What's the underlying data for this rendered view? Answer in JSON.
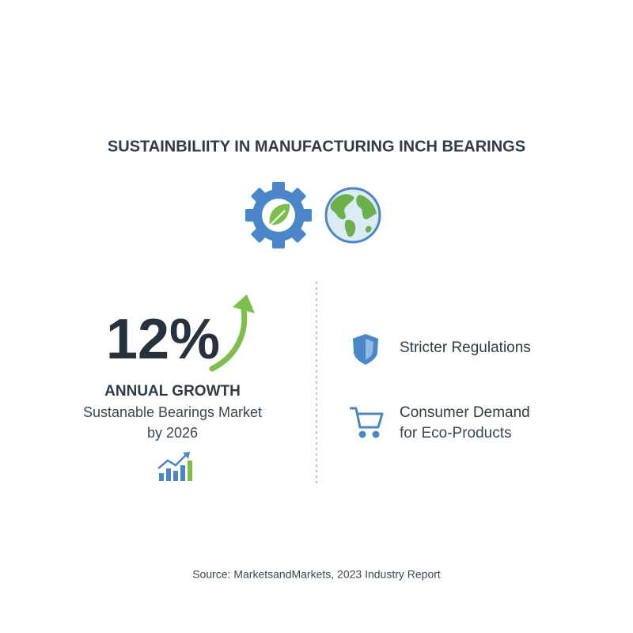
{
  "header": {
    "title": "SUSTAINBILIITY IN MANUFACTURING INCH BEARINGS"
  },
  "stat": {
    "value": "12%",
    "label": "ANNUAL GROWTH",
    "description": [
      "Sustanable Bearings Market",
      "by 2026"
    ]
  },
  "drivers": [
    {
      "lines": [
        "Stricter Regulations"
      ]
    },
    {
      "lines": [
        "Consumer Demand",
        "for Eco-Products"
      ]
    }
  ],
  "footer": {
    "source": "Source: MarketsandMarkets, 2023 Industry Report"
  }
}
